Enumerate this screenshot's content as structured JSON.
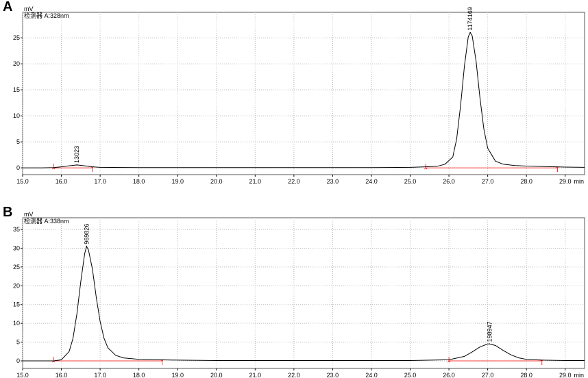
{
  "chart_data": [
    {
      "type": "line",
      "panel": "A",
      "y_label": "mV",
      "detector": "检测器 A:328nm",
      "x_unit": "min",
      "xlim": [
        15,
        29.5
      ],
      "ylim": [
        -1.3,
        29.9
      ],
      "grid": true,
      "xticks": [
        {
          "value": 15,
          "label": "15.0"
        },
        {
          "value": 16,
          "label": "16.0"
        },
        {
          "value": 17,
          "label": "17.0"
        },
        {
          "value": 18,
          "label": "18.0"
        },
        {
          "value": 19,
          "label": "19.0"
        },
        {
          "value": 20,
          "label": "20.0"
        },
        {
          "value": 21,
          "label": "21.0"
        },
        {
          "value": 22,
          "label": "22.0"
        },
        {
          "value": 23,
          "label": "23.0"
        },
        {
          "value": 24,
          "label": "24.0"
        },
        {
          "value": 25,
          "label": "25.0"
        },
        {
          "value": 26,
          "label": "26.0"
        },
        {
          "value": 27,
          "label": "27.0"
        },
        {
          "value": 28,
          "label": "28.0"
        },
        {
          "value": 29,
          "label": "29.0"
        }
      ],
      "yticks": [
        0,
        5,
        10,
        15,
        20,
        25
      ],
      "x": [
        15.0,
        15.5,
        15.8,
        16.0,
        16.2,
        16.4,
        16.6,
        16.8,
        17.0,
        18,
        19,
        20,
        21,
        22,
        23,
        24,
        25,
        25.4,
        25.7,
        25.9,
        26.1,
        26.2,
        26.3,
        26.4,
        26.5,
        26.55,
        26.6,
        26.7,
        26.8,
        26.9,
        27.0,
        27.2,
        27.4,
        27.7,
        28,
        28.5,
        29,
        29.5
      ],
      "series": [
        {
          "color": "#000000",
          "values": [
            0,
            0,
            0.05,
            0.2,
            0.4,
            0.55,
            0.4,
            0.2,
            0.1,
            0.05,
            0.05,
            0.05,
            0.05,
            0.05,
            0.05,
            0.05,
            0.1,
            0.2,
            0.3,
            0.7,
            2.1,
            5.6,
            11.9,
            19.6,
            25.2,
            26,
            25.4,
            20.5,
            13.5,
            7.5,
            3.8,
            1.3,
            0.7,
            0.45,
            0.35,
            0.25,
            0.15,
            0.1
          ]
        }
      ],
      "baseline_color": "#ff0000",
      "baselines": [
        {
          "start": 15.8,
          "end": 16.8
        },
        {
          "start": 25.4,
          "end": 28.8
        }
      ],
      "peaks": [
        {
          "x": 16.4,
          "y": 0.55,
          "area": 13023
        },
        {
          "x": 26.55,
          "y": 26,
          "area": 1174169
        }
      ]
    },
    {
      "type": "line",
      "panel": "B",
      "y_label": "mV",
      "detector": "检测器 A:338nm",
      "x_unit": "min",
      "xlim": [
        15,
        29.5
      ],
      "ylim": [
        -2,
        38.1
      ],
      "grid": true,
      "xticks": [
        {
          "value": 15,
          "label": "15.0"
        },
        {
          "value": 16,
          "label": "16.0"
        },
        {
          "value": 17,
          "label": "17.0"
        },
        {
          "value": 18,
          "label": "18.0"
        },
        {
          "value": 19,
          "label": "19.0"
        },
        {
          "value": 20,
          "label": "20.0"
        },
        {
          "value": 21,
          "label": "21.0"
        },
        {
          "value": 22,
          "label": "22.0"
        },
        {
          "value": 23,
          "label": "23.0"
        },
        {
          "value": 24,
          "label": "24.0"
        },
        {
          "value": 25,
          "label": "25.0"
        },
        {
          "value": 26,
          "label": "26.0"
        },
        {
          "value": 27,
          "label": "27.0"
        },
        {
          "value": 28,
          "label": "28.0"
        },
        {
          "value": 29,
          "label": "29.0"
        }
      ],
      "yticks": [
        0,
        5,
        10,
        15,
        20,
        25,
        30,
        35
      ],
      "x": [
        15.0,
        15.5,
        15.8,
        16.0,
        16.2,
        16.3,
        16.4,
        16.5,
        16.6,
        16.65,
        16.7,
        16.8,
        16.9,
        17.0,
        17.1,
        17.2,
        17.4,
        17.6,
        18,
        18.5,
        19,
        20,
        21,
        22,
        23,
        24,
        25,
        26,
        26.4,
        26.6,
        26.8,
        27.0,
        27.05,
        27.2,
        27.4,
        27.6,
        27.8,
        28,
        28.4,
        29,
        29.5
      ],
      "series": [
        {
          "color": "#000000",
          "values": [
            0,
            0,
            0,
            0.3,
            2.5,
            6,
            12.5,
            21,
            28.5,
            30.5,
            29.5,
            24.5,
            17,
            10.5,
            6,
            3.5,
            1.5,
            0.8,
            0.4,
            0.3,
            0.2,
            0.1,
            0.1,
            0.1,
            0.1,
            0.1,
            0.1,
            0.3,
            1.2,
            2.4,
            3.7,
            4.5,
            4.5,
            4.1,
            2.8,
            1.6,
            0.8,
            0.4,
            0.2,
            0.1,
            0.1
          ]
        }
      ],
      "baseline_color": "#ff0000",
      "baselines": [
        {
          "start": 15.8,
          "end": 18.6
        },
        {
          "start": 26.0,
          "end": 28.4
        }
      ],
      "peaks": [
        {
          "x": 16.65,
          "y": 30.5,
          "area": 969826
        },
        {
          "x": 27.05,
          "y": 4.5,
          "area": 198947
        }
      ]
    }
  ]
}
